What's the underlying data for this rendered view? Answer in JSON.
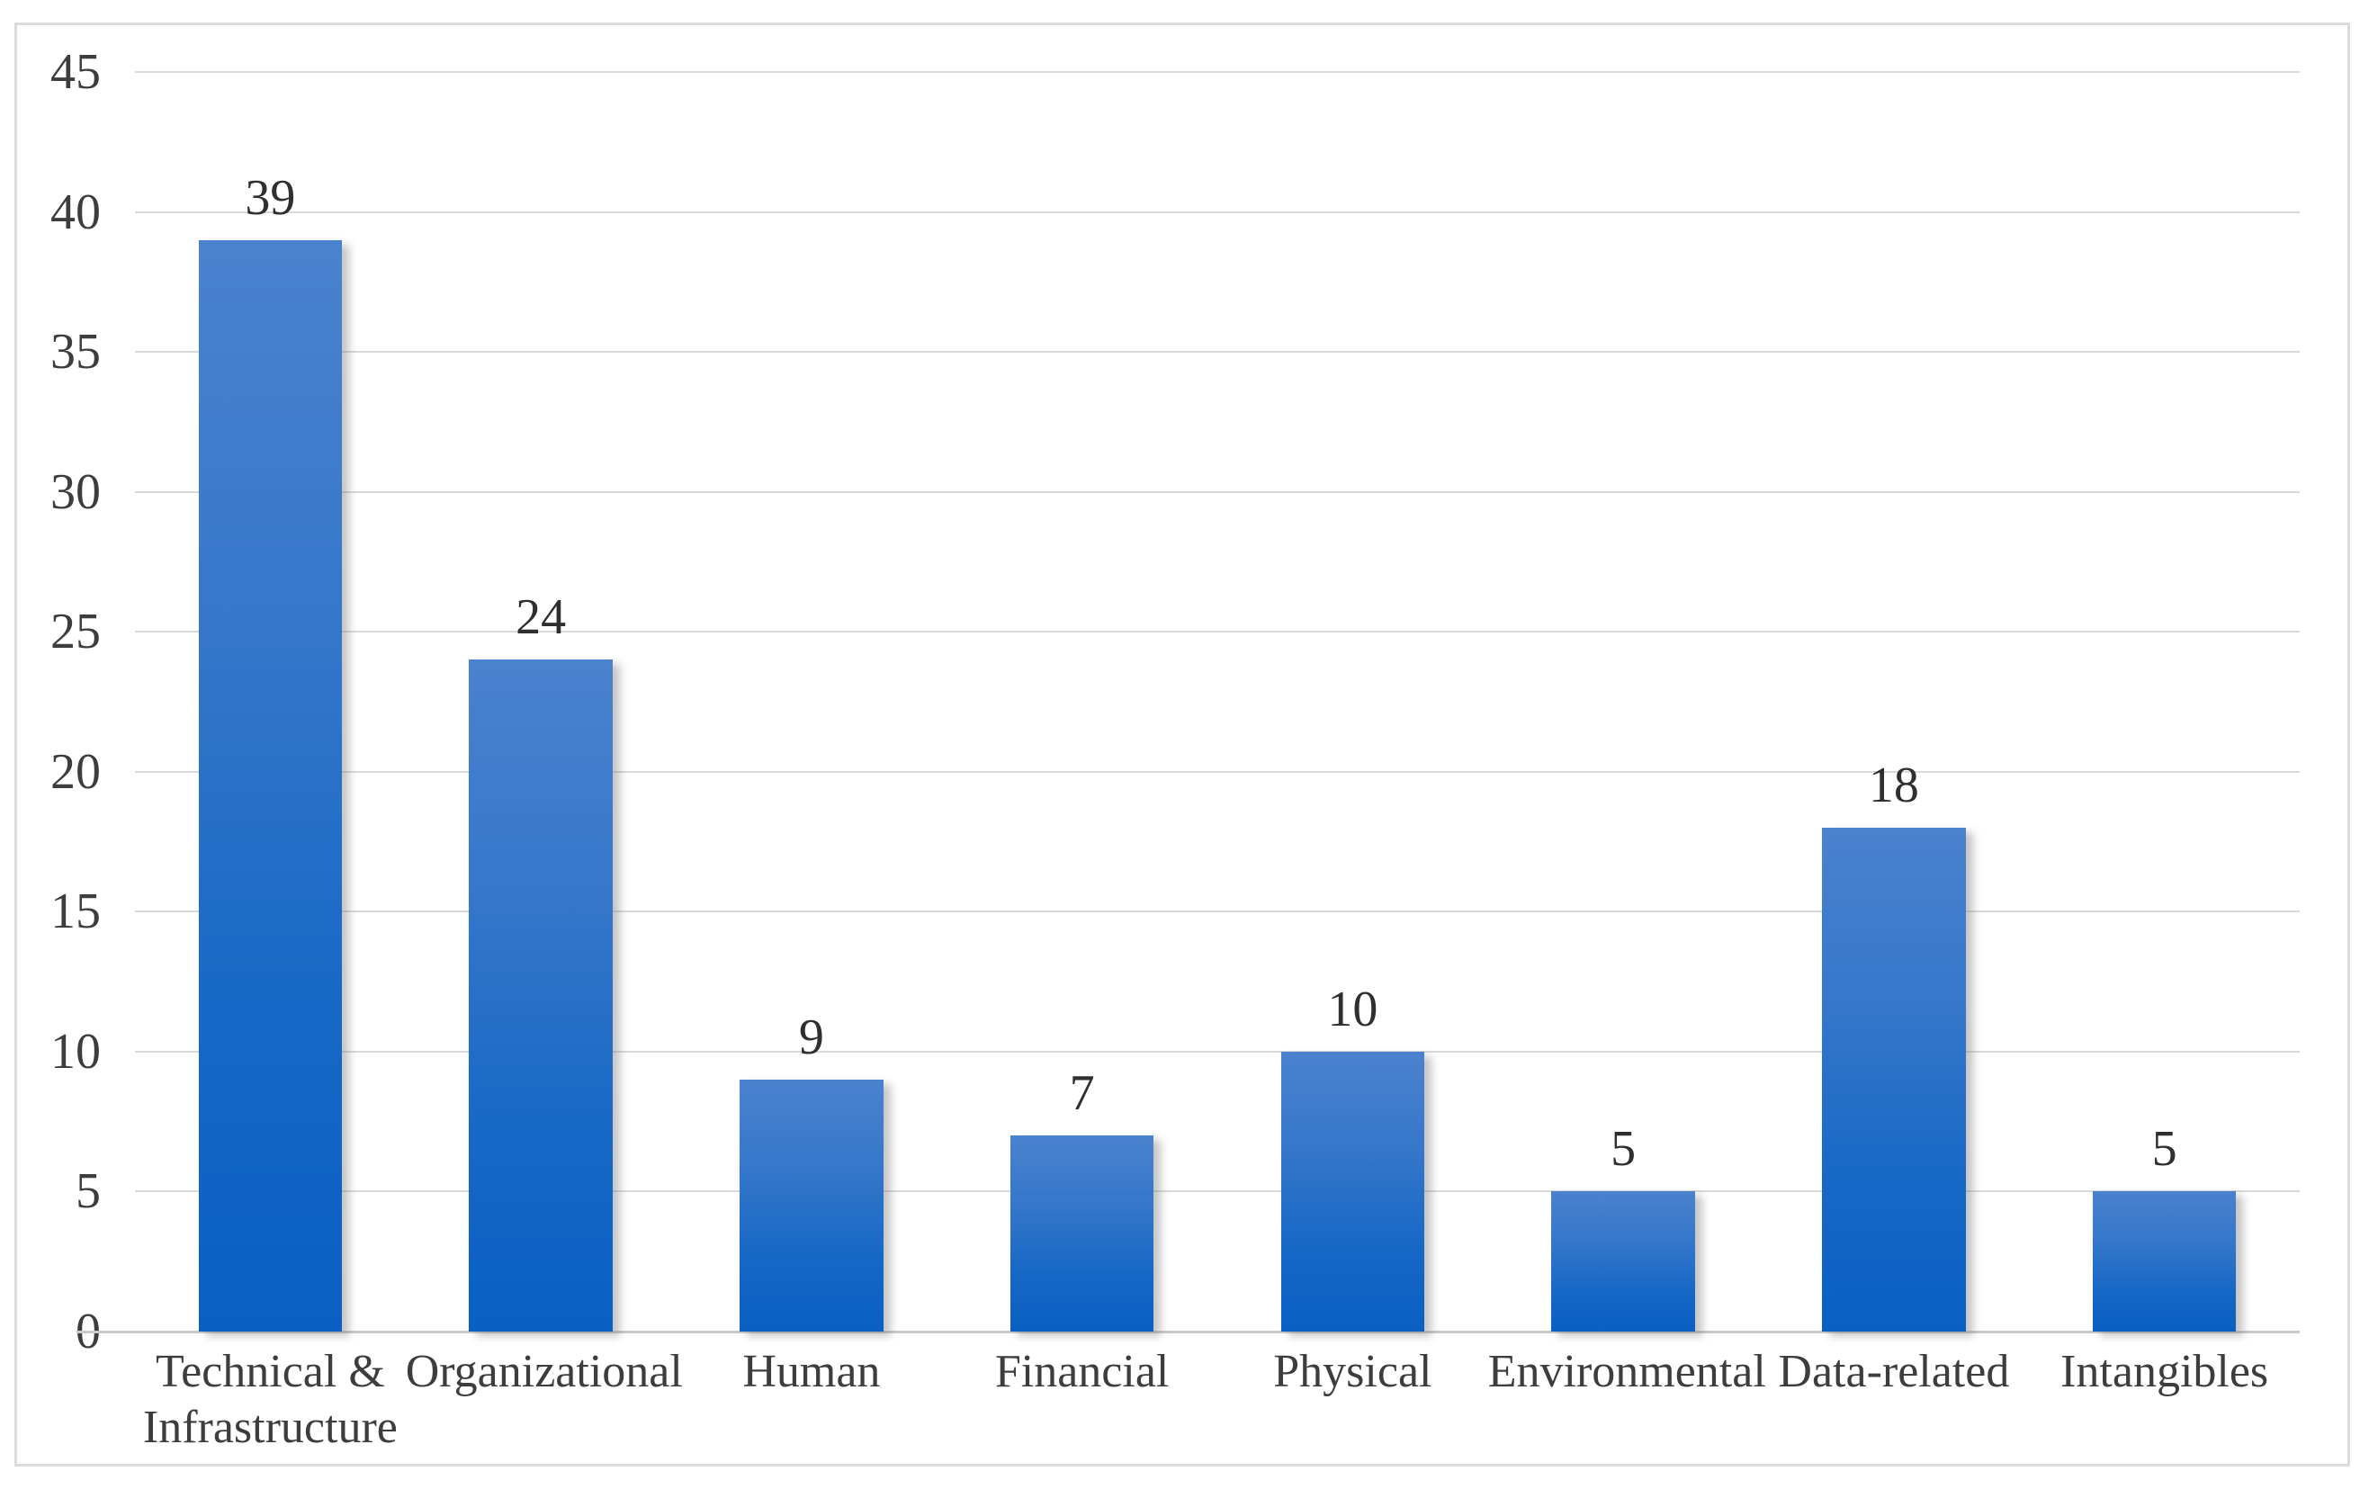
{
  "figure": {
    "background": "#ffffff",
    "border_color": "#dcdcdc"
  },
  "chart_data": {
    "type": "bar",
    "title": "",
    "xlabel": "",
    "ylabel": "",
    "categories": [
      "Technical & Infrastructure",
      "Organizational",
      "Human",
      "Financial",
      "Physical",
      "Environmental",
      "Data-related",
      "Intangibles"
    ],
    "values": [
      39,
      24,
      9,
      7,
      10,
      5,
      18,
      5
    ],
    "data_labels": [
      "39",
      "24",
      "9",
      "7",
      "10",
      "5",
      "18",
      "5"
    ],
    "ylim": [
      0,
      45
    ],
    "yticks": [
      45,
      40,
      35,
      30,
      25,
      20,
      15,
      10,
      5,
      0
    ],
    "grid": true,
    "legend": false,
    "colors": {
      "bar_gradient_top": "#4b82ce",
      "bar_gradient_bottom": "#0a5fc2",
      "gridline": "#d9d9d9",
      "axis_line": "#c9c9c9",
      "tick_text": "#3d3d3d",
      "value_text": "#2f2f2f"
    }
  }
}
